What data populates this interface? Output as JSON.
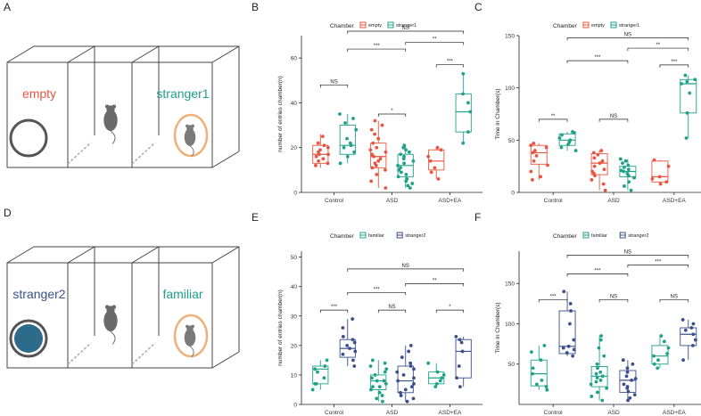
{
  "colors": {
    "empty": "#e8553f",
    "stranger1": "#1fa187",
    "familiar": "#1fa187",
    "stranger2": "#3b4f8c",
    "box_line": "#333333",
    "ring": "#f0b07a"
  },
  "panels": [
    {
      "id": "A",
      "letter": "A",
      "left_label": "empty",
      "right_label": "stranger1",
      "left_color": "#e8553f",
      "right_color": "#1fa187",
      "left_animal": false,
      "right_animal": true
    },
    {
      "id": "D",
      "letter": "D",
      "left_label": "stranger2",
      "right_label": "familiar",
      "left_color": "#3b4f8c",
      "right_color": "#1fa187",
      "left_animal": true,
      "right_animal": true
    }
  ],
  "chart_data": [
    {
      "panel": "B",
      "type": "box",
      "legend_title": "Chamber",
      "categories": [
        "Control",
        "ASD",
        "ASD+EA"
      ],
      "groups": [
        "empty",
        "stranger1"
      ],
      "group_colors": [
        "#e8553f",
        "#1fa187"
      ],
      "ylabel": "number of entries chamber(n)",
      "ylim": [
        0,
        70
      ],
      "yticks": [
        0,
        20,
        40,
        60
      ],
      "boxes": [
        {
          "cat": 0,
          "grp": 0,
          "q1": 13,
          "med": 17,
          "q3": 21,
          "lo": 11,
          "hi": 26,
          "points": [
            12,
            13,
            14,
            15,
            16,
            17,
            17,
            18,
            19,
            20,
            21,
            22,
            25
          ]
        },
        {
          "cat": 0,
          "grp": 1,
          "q1": 17,
          "med": 21,
          "q3": 30,
          "lo": 13,
          "hi": 35,
          "points": [
            13,
            16,
            18,
            20,
            21,
            22,
            24,
            28,
            31,
            35,
            33
          ]
        },
        {
          "cat": 1,
          "grp": 0,
          "q1": 11,
          "med": 16,
          "q3": 22,
          "lo": 2,
          "hi": 32,
          "points": [
            2,
            5,
            8,
            10,
            11,
            12,
            14,
            15,
            16,
            17,
            18,
            20,
            22,
            24,
            26,
            28,
            30,
            32,
            13,
            19
          ]
        },
        {
          "cat": 1,
          "grp": 1,
          "q1": 7,
          "med": 12,
          "q3": 17,
          "lo": 2,
          "hi": 21,
          "points": [
            2,
            3,
            4,
            5,
            6,
            7,
            8,
            9,
            10,
            11,
            12,
            13,
            14,
            15,
            16,
            17,
            18,
            19,
            20,
            21
          ]
        },
        {
          "cat": 2,
          "grp": 0,
          "q1": 10,
          "med": 14,
          "q3": 19,
          "lo": 6,
          "hi": 20,
          "points": [
            6,
            9,
            11,
            14,
            16,
            19,
            20
          ]
        },
        {
          "cat": 2,
          "grp": 1,
          "q1": 27,
          "med": 36,
          "q3": 44,
          "lo": 22,
          "hi": 53,
          "points": [
            22,
            27,
            36,
            40,
            44,
            53
          ]
        }
      ],
      "sig": [
        {
          "text": "NS",
          "x1": [
            0,
            0
          ],
          "x2": [
            0,
            1
          ],
          "y": 48,
          "wide": false
        },
        {
          "text": "*",
          "x1": [
            1,
            0
          ],
          "x2": [
            1,
            1
          ],
          "y": 35,
          "wide": false
        },
        {
          "text": "***",
          "x1": [
            2,
            0
          ],
          "x2": [
            2,
            1
          ],
          "y": 57,
          "wide": false
        },
        {
          "text": "***",
          "x1": [
            0,
            1
          ],
          "x2": [
            1,
            1
          ],
          "y": 64,
          "wide": true
        },
        {
          "text": "**",
          "x1": [
            1,
            1
          ],
          "x2": [
            2,
            1
          ],
          "y": 67,
          "wide": true
        },
        {
          "text": "NS",
          "x1": [
            0,
            1
          ],
          "x2": [
            2,
            1
          ],
          "y": 72,
          "wide": true
        }
      ]
    },
    {
      "panel": "C",
      "type": "box",
      "legend_title": "Chamber",
      "categories": [
        "Control",
        "ASD",
        "ASD+EA"
      ],
      "groups": [
        "empty",
        "stranger1"
      ],
      "group_colors": [
        "#e8553f",
        "#1fa187"
      ],
      "ylabel": "Time in Chamber(s)",
      "ylim": [
        0,
        150
      ],
      "yticks": [
        0,
        50,
        100,
        150
      ],
      "boxes": [
        {
          "cat": 0,
          "grp": 0,
          "q1": 27,
          "med": 38,
          "q3": 45,
          "lo": 12,
          "hi": 47,
          "points": [
            12,
            15,
            20,
            26,
            30,
            35,
            38,
            40,
            43,
            45,
            47
          ]
        },
        {
          "cat": 0,
          "grp": 1,
          "q1": 45,
          "med": 50,
          "q3": 56,
          "lo": 40,
          "hi": 58,
          "points": [
            40,
            43,
            46,
            48,
            50,
            52,
            55,
            57,
            58
          ]
        },
        {
          "cat": 1,
          "grp": 0,
          "q1": 17,
          "med": 28,
          "q3": 37,
          "lo": 2,
          "hi": 40,
          "points": [
            2,
            8,
            12,
            16,
            20,
            22,
            25,
            28,
            30,
            33,
            36,
            38,
            40,
            18
          ]
        },
        {
          "cat": 1,
          "grp": 1,
          "q1": 15,
          "med": 20,
          "q3": 25,
          "lo": 2,
          "hi": 32,
          "points": [
            2,
            6,
            10,
            14,
            16,
            18,
            20,
            21,
            22,
            24,
            26,
            28,
            30,
            32
          ]
        },
        {
          "cat": 2,
          "grp": 0,
          "q1": 10,
          "med": 15,
          "q3": 30,
          "lo": 8,
          "hi": 31,
          "points": [
            8,
            10,
            13,
            15,
            25,
            31
          ]
        },
        {
          "cat": 2,
          "grp": 1,
          "q1": 76,
          "med": 104,
          "q3": 108,
          "lo": 52,
          "hi": 112,
          "points": [
            52,
            76,
            95,
            104,
            106,
            108,
            112
          ]
        }
      ],
      "sig": [
        {
          "text": "**",
          "x1": [
            0,
            0
          ],
          "x2": [
            0,
            1
          ],
          "y": 70,
          "wide": false
        },
        {
          "text": "NS",
          "x1": [
            1,
            0
          ],
          "x2": [
            1,
            1
          ],
          "y": 70,
          "wide": false
        },
        {
          "text": "***",
          "x1": [
            2,
            0
          ],
          "x2": [
            2,
            1
          ],
          "y": 122,
          "wide": false
        },
        {
          "text": "***",
          "x1": [
            0,
            1
          ],
          "x2": [
            1,
            1
          ],
          "y": 126,
          "wide": true
        },
        {
          "text": "**",
          "x1": [
            1,
            1
          ],
          "x2": [
            2,
            1
          ],
          "y": 138,
          "wide": true
        },
        {
          "text": "NS",
          "x1": [
            0,
            1
          ],
          "x2": [
            2,
            1
          ],
          "y": 148,
          "wide": true
        }
      ]
    },
    {
      "panel": "E",
      "type": "box",
      "legend_title": "Chamber",
      "categories": [
        "Control",
        "ASD",
        "ASD+EA"
      ],
      "groups": [
        "familiar",
        "stranger2"
      ],
      "group_colors": [
        "#1fa187",
        "#3b4f8c"
      ],
      "ylabel": "number of entries chamber(n)",
      "ylim": [
        0,
        52
      ],
      "yticks": [
        0,
        10,
        20,
        30,
        40,
        50
      ],
      "boxes": [
        {
          "cat": 0,
          "grp": 0,
          "q1": 7,
          "med": 12,
          "q3": 13,
          "lo": 5,
          "hi": 15,
          "points": [
            5,
            7,
            9,
            11,
            12,
            13,
            15,
            7
          ]
        },
        {
          "cat": 0,
          "grp": 1,
          "q1": 16,
          "med": 19,
          "q3": 22,
          "lo": 13,
          "hi": 29,
          "points": [
            13,
            15,
            17,
            18,
            19,
            20,
            21,
            22,
            23,
            26,
            29
          ]
        },
        {
          "cat": 1,
          "grp": 0,
          "q1": 5,
          "med": 8,
          "q3": 10,
          "lo": 1,
          "hi": 15,
          "points": [
            1,
            2,
            3,
            4,
            5,
            6,
            7,
            8,
            9,
            10,
            11,
            12,
            13,
            14,
            15,
            6,
            8,
            9
          ]
        },
        {
          "cat": 1,
          "grp": 1,
          "q1": 4,
          "med": 8,
          "q3": 13,
          "lo": 1,
          "hi": 20,
          "points": [
            1,
            2,
            3,
            4,
            5,
            6,
            7,
            8,
            9,
            10,
            11,
            12,
            13,
            14,
            16,
            18,
            20
          ]
        },
        {
          "cat": 2,
          "grp": 0,
          "q1": 7,
          "med": 9,
          "q3": 11,
          "lo": 6,
          "hi": 14,
          "points": [
            6,
            7,
            8,
            9,
            10,
            11,
            14
          ]
        },
        {
          "cat": 2,
          "grp": 1,
          "q1": 9,
          "med": 18,
          "q3": 22,
          "lo": 6,
          "hi": 23,
          "points": [
            6,
            9,
            13,
            18,
            21,
            22,
            23
          ]
        }
      ],
      "sig": [
        {
          "text": "***",
          "x1": [
            0,
            0
          ],
          "x2": [
            0,
            1
          ],
          "y": 32,
          "wide": false
        },
        {
          "text": "NS",
          "x1": [
            1,
            0
          ],
          "x2": [
            1,
            1
          ],
          "y": 32,
          "wide": false
        },
        {
          "text": "*",
          "x1": [
            2,
            0
          ],
          "x2": [
            2,
            1
          ],
          "y": 32,
          "wide": false
        },
        {
          "text": "***",
          "x1": [
            0,
            1
          ],
          "x2": [
            1,
            1
          ],
          "y": 38,
          "wide": true
        },
        {
          "text": "**",
          "x1": [
            1,
            1
          ],
          "x2": [
            2,
            1
          ],
          "y": 41,
          "wide": true
        },
        {
          "text": "NS",
          "x1": [
            0,
            1
          ],
          "x2": [
            2,
            1
          ],
          "y": 46,
          "wide": true
        }
      ]
    },
    {
      "panel": "F",
      "type": "box",
      "legend_title": "Chamber",
      "categories": [
        "Control",
        "ASD",
        "ASD+EA"
      ],
      "groups": [
        "familiar",
        "stranger2"
      ],
      "group_colors": [
        "#1fa187",
        "#3b4f8c"
      ],
      "ylabel": "Time in Chamber(s)",
      "ylim": [
        0,
        190
      ],
      "yticks": [
        50,
        100,
        150
      ],
      "boxes": [
        {
          "cat": 0,
          "grp": 0,
          "q1": 23,
          "med": 38,
          "q3": 55,
          "lo": 18,
          "hi": 73,
          "points": [
            18,
            22,
            25,
            30,
            38,
            45,
            55,
            65,
            73
          ]
        },
        {
          "cat": 0,
          "grp": 1,
          "q1": 63,
          "med": 72,
          "q3": 116,
          "lo": 60,
          "hi": 140,
          "points": [
            60,
            64,
            68,
            70,
            72,
            80,
            100,
            116,
            125,
            140
          ]
        },
        {
          "cat": 1,
          "grp": 0,
          "q1": 22,
          "med": 35,
          "q3": 47,
          "lo": 5,
          "hi": 85,
          "points": [
            5,
            10,
            15,
            20,
            25,
            30,
            35,
            38,
            40,
            45,
            50,
            60,
            70,
            80,
            85,
            28,
            33
          ]
        },
        {
          "cat": 1,
          "grp": 1,
          "q1": 15,
          "med": 30,
          "q3": 42,
          "lo": 5,
          "hi": 55,
          "points": [
            5,
            8,
            12,
            16,
            20,
            25,
            30,
            32,
            35,
            40,
            45,
            50,
            55,
            22
          ]
        },
        {
          "cat": 2,
          "grp": 0,
          "q1": 50,
          "med": 60,
          "q3": 73,
          "lo": 45,
          "hi": 85,
          "points": [
            45,
            50,
            55,
            60,
            63,
            70,
            78,
            85
          ]
        },
        {
          "cat": 2,
          "grp": 1,
          "q1": 73,
          "med": 87,
          "q3": 95,
          "lo": 55,
          "hi": 105,
          "points": [
            55,
            73,
            80,
            87,
            92,
            95,
            100,
            105
          ]
        }
      ],
      "sig": [
        {
          "text": "***",
          "x1": [
            0,
            0
          ],
          "x2": [
            0,
            1
          ],
          "y": 130,
          "wide": false
        },
        {
          "text": "NS",
          "x1": [
            1,
            0
          ],
          "x2": [
            1,
            1
          ],
          "y": 130,
          "wide": false
        },
        {
          "text": "NS",
          "x1": [
            2,
            0
          ],
          "x2": [
            2,
            1
          ],
          "y": 130,
          "wide": false
        },
        {
          "text": "***",
          "x1": [
            0,
            1
          ],
          "x2": [
            1,
            1
          ],
          "y": 162,
          "wide": true
        },
        {
          "text": "***",
          "x1": [
            1,
            1
          ],
          "x2": [
            2,
            1
          ],
          "y": 173,
          "wide": true
        },
        {
          "text": "NS",
          "x1": [
            0,
            1
          ],
          "x2": [
            2,
            1
          ],
          "y": 185,
          "wide": true
        }
      ]
    }
  ]
}
